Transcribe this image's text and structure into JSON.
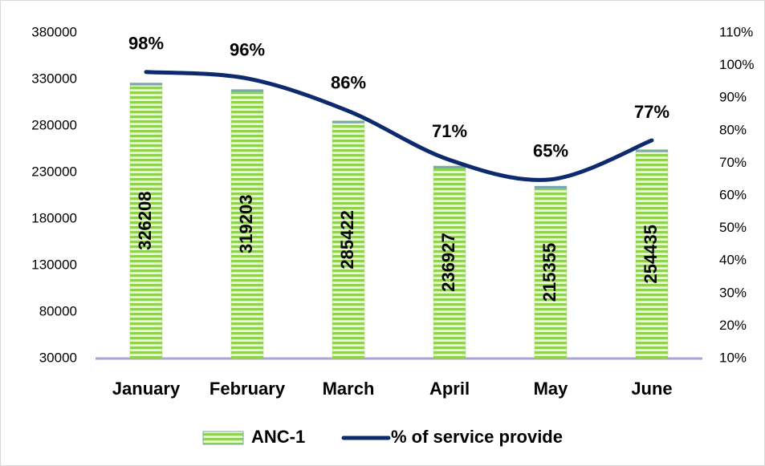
{
  "chart_data": {
    "type": "bar",
    "categories": [
      "January",
      "February",
      "March",
      "April",
      "May",
      "June"
    ],
    "series": [
      {
        "name": "ANC-1",
        "type": "bar",
        "color": "#92d050",
        "values": [
          326208,
          319203,
          285422,
          236927,
          215355,
          254435
        ]
      },
      {
        "name": "% of service provide",
        "type": "line",
        "axis": "y2",
        "color": "#0d2a6e",
        "values": [
          98,
          96,
          86,
          71,
          65,
          77
        ],
        "value_labels": [
          "98%",
          "96%",
          "86%",
          "71%",
          "65%",
          "77%"
        ]
      }
    ],
    "ylim": [
      30000,
      380000
    ],
    "yticks": [
      30000,
      80000,
      130000,
      180000,
      230000,
      280000,
      330000,
      380000
    ],
    "y2lim": [
      10,
      110
    ],
    "y2ticks": [
      {
        "value": 10,
        "label": "10%"
      },
      {
        "value": 20,
        "label": "20%"
      },
      {
        "value": 30,
        "label": "30%"
      },
      {
        "value": 40,
        "label": "40%"
      },
      {
        "value": 50,
        "label": "50%"
      },
      {
        "value": 60,
        "label": "60%"
      },
      {
        "value": 70,
        "label": "70%"
      },
      {
        "value": 80,
        "label": "80%"
      },
      {
        "value": 90,
        "label": "90%"
      },
      {
        "value": 100,
        "label": "100%"
      },
      {
        "value": 110,
        "label": "110%"
      }
    ],
    "legend": "bottom"
  }
}
